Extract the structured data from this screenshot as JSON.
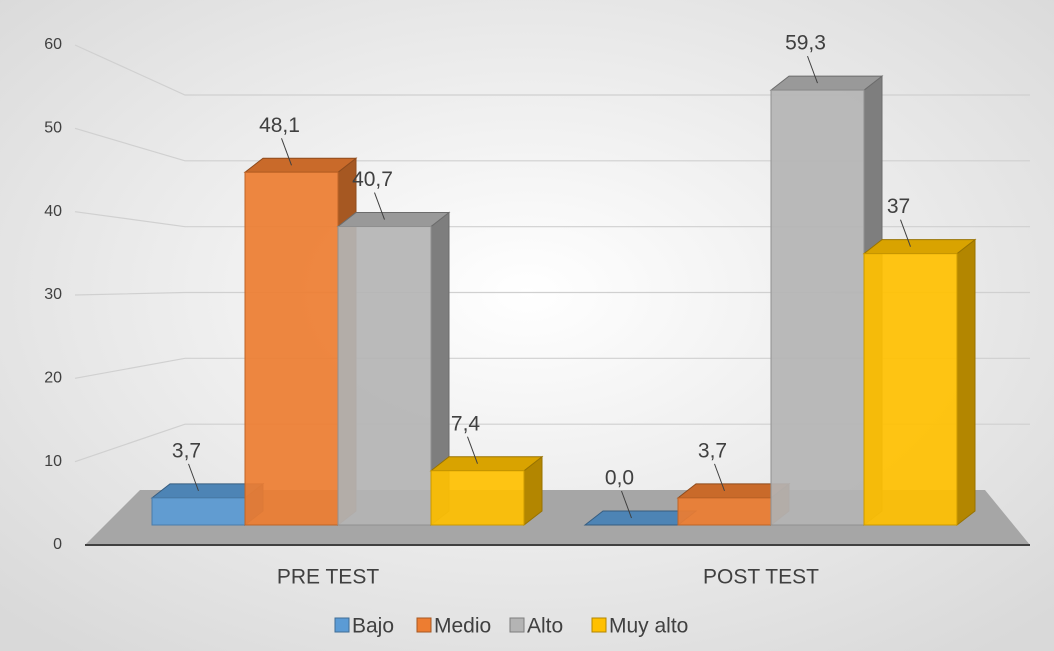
{
  "chart_data": {
    "type": "bar3d",
    "categories": [
      "PRE TEST",
      "POST TEST"
    ],
    "series": [
      {
        "name": "Bajo",
        "color": "#5b9bd5",
        "values": [
          3.7,
          0
        ],
        "value_labels": [
          "3,7",
          "0,0"
        ]
      },
      {
        "name": "Medio",
        "color": "#ed7d31",
        "values": [
          48.1,
          3.7
        ],
        "value_labels": [
          "48,1",
          "3,7"
        ]
      },
      {
        "name": "Alto",
        "color": "#b4b4b4",
        "values": [
          40.7,
          59.3
        ],
        "value_labels": [
          "40,7",
          "59,3"
        ]
      },
      {
        "name": "Muy alto",
        "color": "#ffc000",
        "values": [
          7.4,
          37
        ],
        "value_labels": [
          "7,4",
          "37"
        ]
      }
    ],
    "ylim": [
      0,
      60
    ],
    "yticks": [
      0,
      10,
      20,
      30,
      40,
      50,
      60
    ],
    "grid": true,
    "legend": "bottom"
  }
}
